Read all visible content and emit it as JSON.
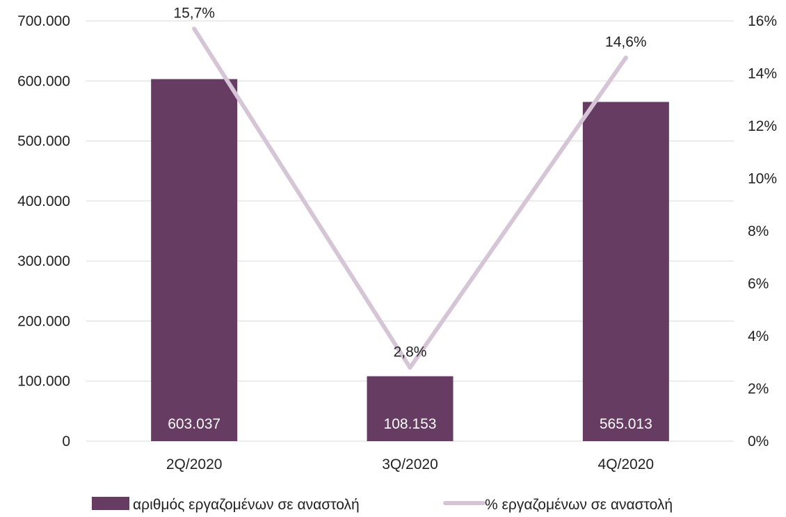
{
  "chart_data": {
    "type": "bar",
    "categories": [
      "2Q/2020",
      "3Q/2020",
      "4Q/2020"
    ],
    "series": [
      {
        "name": "αριθμός εργαζομένων σε αναστολή",
        "type": "bar",
        "axis": "left",
        "values": [
          603037,
          108153,
          565013
        ],
        "data_labels": [
          "603.037",
          "108.153",
          "565.013"
        ],
        "color": "#673C63"
      },
      {
        "name": "% εργαζομένων σε αναστολή",
        "type": "line",
        "axis": "right",
        "values": [
          15.7,
          2.8,
          14.6
        ],
        "data_labels": [
          "15,7%",
          "2,8%",
          "14,6%"
        ],
        "color": "#D5C5D6"
      }
    ],
    "y_left": {
      "lim": [
        0,
        700000
      ],
      "ticks": [
        0,
        100000,
        200000,
        300000,
        400000,
        500000,
        600000,
        700000
      ],
      "tick_labels": [
        "0",
        "100.000",
        "200.000",
        "300.000",
        "400.000",
        "500.000",
        "600.000",
        "700.000"
      ]
    },
    "y_right": {
      "lim": [
        0,
        16
      ],
      "ticks": [
        0,
        2,
        4,
        6,
        8,
        10,
        12,
        14,
        16
      ],
      "tick_labels": [
        "0%",
        "2%",
        "4%",
        "6%",
        "8%",
        "10%",
        "12%",
        "14%",
        "16%"
      ]
    },
    "grid": true,
    "legend_position": "bottom"
  }
}
